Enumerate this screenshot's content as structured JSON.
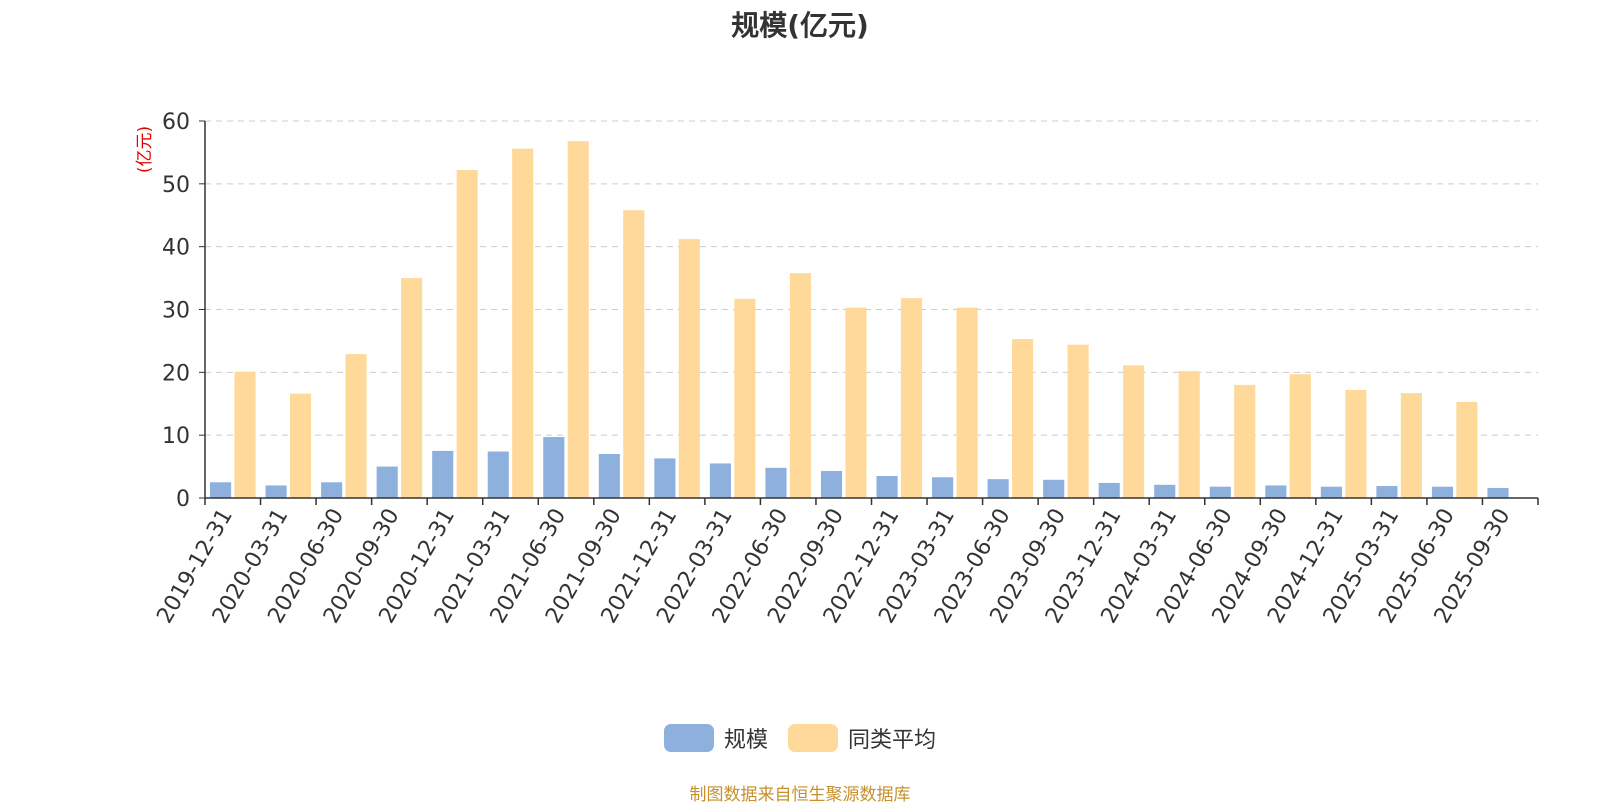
{
  "chart_data": {
    "type": "bar",
    "title": "规模(亿元)",
    "ylabel": "(亿元)",
    "xlabel": "",
    "ylim": [
      0,
      60
    ],
    "yticks": [
      0,
      10,
      20,
      30,
      40,
      50,
      60
    ],
    "grid": true,
    "legend_position": "bottom",
    "categories": [
      "2019-12-31",
      "2020-03-31",
      "2020-06-30",
      "2020-09-30",
      "2020-12-31",
      "2021-03-31",
      "2021-06-30",
      "2021-09-30",
      "2021-12-31",
      "2022-03-31",
      "2022-06-30",
      "2022-09-30",
      "2022-12-31",
      "2023-03-31",
      "2023-06-30",
      "2023-09-30",
      "2023-12-31",
      "2024-03-31",
      "2024-06-30",
      "2024-09-30",
      "2024-12-31",
      "2025-03-31",
      "2025-06-30",
      "2025-09-30"
    ],
    "series": [
      {
        "name": "规模",
        "color": "#8eb0dd",
        "values": [
          2.5,
          2.0,
          2.5,
          5.0,
          7.5,
          7.4,
          9.7,
          7.0,
          6.3,
          5.5,
          4.8,
          4.3,
          3.5,
          3.3,
          3.0,
          2.9,
          2.4,
          2.1,
          1.8,
          2.0,
          1.8,
          1.9,
          1.8,
          1.6
        ]
      },
      {
        "name": "同类平均",
        "color": "#ffd99a",
        "values": [
          20.1,
          16.6,
          22.9,
          35.0,
          52.2,
          55.6,
          56.8,
          45.8,
          41.2,
          31.7,
          35.8,
          30.3,
          31.8,
          30.3,
          25.3,
          24.4,
          21.1,
          20.2,
          18.0,
          19.7,
          17.2,
          16.7,
          15.3,
          null
        ]
      }
    ]
  },
  "colors": {
    "axis": "#333333",
    "grid": "#cccccc",
    "ylabel": "#e60000",
    "source": "#c8902a"
  },
  "source_note": "制图数据来自恒生聚源数据库"
}
